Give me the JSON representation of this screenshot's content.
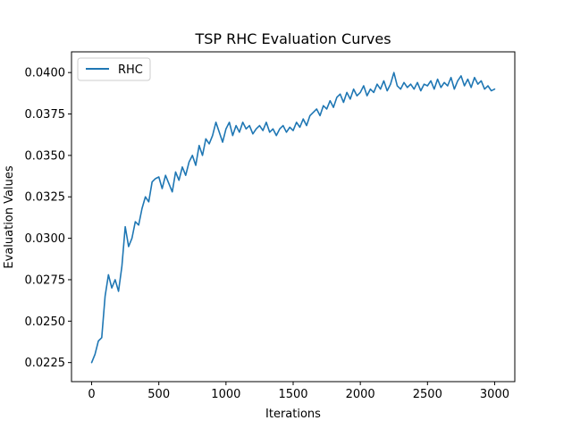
{
  "chart_data": {
    "type": "line",
    "title": "TSP RHC Evaluation Curves",
    "xlabel": "Iterations",
    "ylabel": "Evaluation Values",
    "xlim": [
      -150,
      3150
    ],
    "ylim": [
      0.02135,
      0.04125
    ],
    "xticks": [
      0,
      500,
      1000,
      1500,
      2000,
      2500,
      3000
    ],
    "yticks": [
      0.0225,
      0.025,
      0.0275,
      0.03,
      0.0325,
      0.035,
      0.0375,
      0.04
    ],
    "ytick_labels": [
      "0.0225",
      "0.0250",
      "0.0275",
      "0.0300",
      "0.0325",
      "0.0350",
      "0.0375",
      "0.0400"
    ],
    "grid": false,
    "legend": {
      "position": "top-left"
    },
    "series": [
      {
        "name": "RHC",
        "color": "#1f77b4",
        "x": [
          0,
          25,
          50,
          75,
          100,
          125,
          150,
          175,
          200,
          225,
          250,
          275,
          300,
          325,
          350,
          375,
          400,
          425,
          450,
          475,
          500,
          525,
          550,
          575,
          600,
          625,
          650,
          675,
          700,
          725,
          750,
          775,
          800,
          825,
          850,
          875,
          900,
          925,
          950,
          975,
          1000,
          1025,
          1050,
          1075,
          1100,
          1125,
          1150,
          1175,
          1200,
          1225,
          1250,
          1275,
          1300,
          1325,
          1350,
          1375,
          1400,
          1425,
          1450,
          1475,
          1500,
          1525,
          1550,
          1575,
          1600,
          1625,
          1650,
          1675,
          1700,
          1725,
          1750,
          1775,
          1800,
          1825,
          1850,
          1875,
          1900,
          1925,
          1950,
          1975,
          2000,
          2025,
          2050,
          2075,
          2100,
          2125,
          2150,
          2175,
          2200,
          2225,
          2250,
          2275,
          2300,
          2325,
          2350,
          2375,
          2400,
          2425,
          2450,
          2475,
          2500,
          2525,
          2550,
          2575,
          2600,
          2625,
          2650,
          2675,
          2700,
          2725,
          2750,
          2775,
          2800,
          2825,
          2850,
          2875,
          2900,
          2925,
          2950,
          2975,
          3000
        ],
        "y": [
          0.0225,
          0.023,
          0.0238,
          0.024,
          0.0265,
          0.0278,
          0.027,
          0.0275,
          0.0268,
          0.0283,
          0.0307,
          0.0295,
          0.03,
          0.031,
          0.0308,
          0.0318,
          0.0325,
          0.0322,
          0.0334,
          0.0336,
          0.0337,
          0.033,
          0.0338,
          0.0333,
          0.0328,
          0.034,
          0.0335,
          0.0343,
          0.0338,
          0.0346,
          0.035,
          0.0344,
          0.0356,
          0.035,
          0.036,
          0.0357,
          0.0362,
          0.037,
          0.0364,
          0.0358,
          0.0366,
          0.037,
          0.0362,
          0.0368,
          0.0364,
          0.037,
          0.0366,
          0.0368,
          0.0363,
          0.0366,
          0.0368,
          0.0365,
          0.037,
          0.0364,
          0.0366,
          0.0362,
          0.0366,
          0.0368,
          0.0364,
          0.0367,
          0.0365,
          0.037,
          0.0367,
          0.0372,
          0.0368,
          0.0374,
          0.0376,
          0.0378,
          0.0374,
          0.038,
          0.0378,
          0.0383,
          0.0379,
          0.0385,
          0.0387,
          0.0382,
          0.0388,
          0.0384,
          0.039,
          0.0386,
          0.0388,
          0.0392,
          0.0386,
          0.039,
          0.0388,
          0.0393,
          0.039,
          0.0395,
          0.0389,
          0.0393,
          0.04,
          0.0392,
          0.039,
          0.0394,
          0.0391,
          0.0393,
          0.039,
          0.0394,
          0.0389,
          0.0393,
          0.0392,
          0.0395,
          0.039,
          0.0396,
          0.0391,
          0.0394,
          0.0392,
          0.0397,
          0.039,
          0.0395,
          0.0398,
          0.0392,
          0.0396,
          0.0391,
          0.0397,
          0.0393,
          0.0395,
          0.039,
          0.0392,
          0.0389,
          0.039
        ]
      }
    ]
  }
}
